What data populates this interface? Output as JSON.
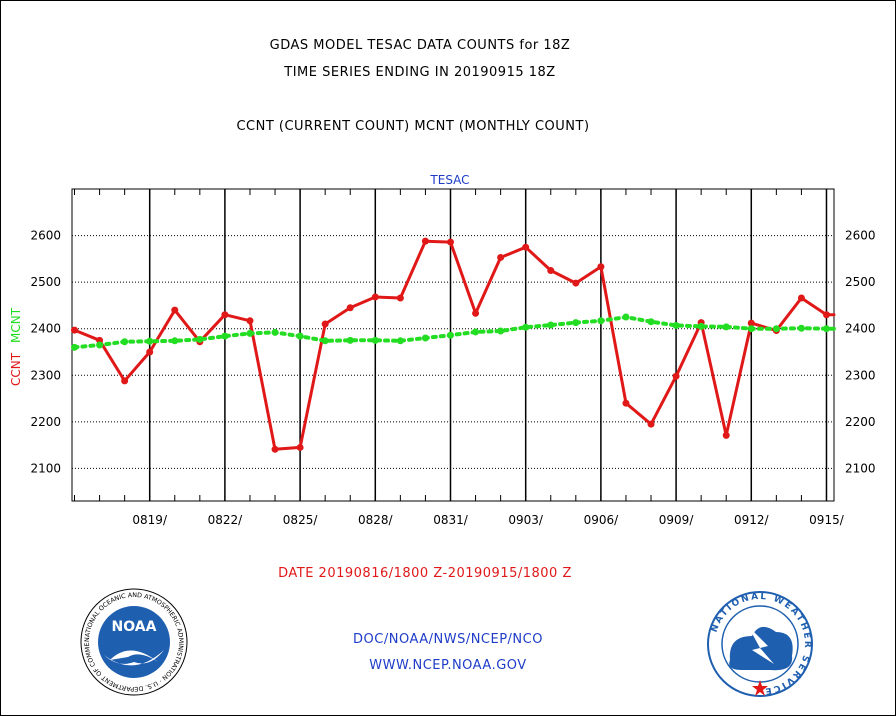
{
  "header": {
    "line1": "GDAS MODEL TESAC DATA COUNTS for 18Z",
    "line2": "TIME SERIES ENDING IN 20190915 18Z",
    "line3": "CCNT (CURRENT COUNT) MCNT (MONTHLY COUNT)"
  },
  "footer": {
    "date_range": "DATE 20190816/1800 Z-20190915/1800 Z",
    "org": "DOC/NOAA/NWS/NCEP/NCO",
    "url": "WWW.NCEP.NOAA.GOV"
  },
  "logos": {
    "left": {
      "text": "NOAA",
      "ring_text": "NATIONAL OCEANIC AND ATMOSPHERIC ADMINISTRATION · U.S. DEPARTMENT OF COMMERCE",
      "color": "#1f5fb0"
    },
    "right": {
      "ring_text": "NATIONAL WEATHER SERVICE",
      "color": "#1f5fb0"
    }
  },
  "chart_data": {
    "type": "line",
    "title": "TESAC",
    "ylabel_left_1": "CCNT",
    "ylabel_left_2": "MCNT",
    "ylim": [
      2030,
      2700
    ],
    "y_ticks": [
      2100,
      2200,
      2300,
      2400,
      2500,
      2600
    ],
    "x_tick_labels": [
      "0819/",
      "0822/",
      "0825/",
      "0828/",
      "0831/",
      "0903/",
      "0906/",
      "0909/",
      "0912/",
      "0915/"
    ],
    "x_tick_days": [
      3,
      6,
      9,
      12,
      15,
      18,
      21,
      24,
      27,
      30
    ],
    "x_days_range": [
      -0.1,
      30.3
    ],
    "grid": true,
    "series": [
      {
        "name": "CCNT",
        "color": "#e01818",
        "x": [
          0,
          1,
          2,
          3,
          4,
          5,
          6,
          7,
          8,
          9,
          10,
          11,
          12,
          13,
          14,
          15,
          16,
          17,
          18,
          19,
          20,
          21,
          22,
          23,
          24,
          25,
          26,
          27,
          28,
          29,
          30,
          30.3
        ],
        "values": [
          2397,
          2375,
          2288,
          2350,
          2440,
          2372,
          2430,
          2417,
          2141,
          2145,
          2410,
          2445,
          2468,
          2466,
          2588,
          2586,
          2433,
          2553,
          2575,
          2525,
          2498,
          2533,
          2240,
          2195,
          2298,
          2413,
          2171,
          2412,
          2396,
          2466,
          2430,
          2430
        ]
      },
      {
        "name": "MCNT",
        "color": "#22dd22",
        "x": [
          0,
          1,
          2,
          3,
          4,
          5,
          6,
          7,
          8,
          9,
          10,
          11,
          12,
          13,
          14,
          15,
          16,
          17,
          18,
          19,
          20,
          21,
          22,
          23,
          24,
          25,
          26,
          27,
          28,
          29,
          30,
          30.3
        ],
        "values": [
          2360,
          2365,
          2372,
          2373,
          2374,
          2377,
          2384,
          2390,
          2392,
          2384,
          2374,
          2375,
          2375,
          2374,
          2380,
          2386,
          2393,
          2395,
          2403,
          2408,
          2413,
          2417,
          2425,
          2415,
          2407,
          2405,
          2404,
          2400,
          2400,
          2401,
          2400,
          2400
        ]
      }
    ]
  }
}
